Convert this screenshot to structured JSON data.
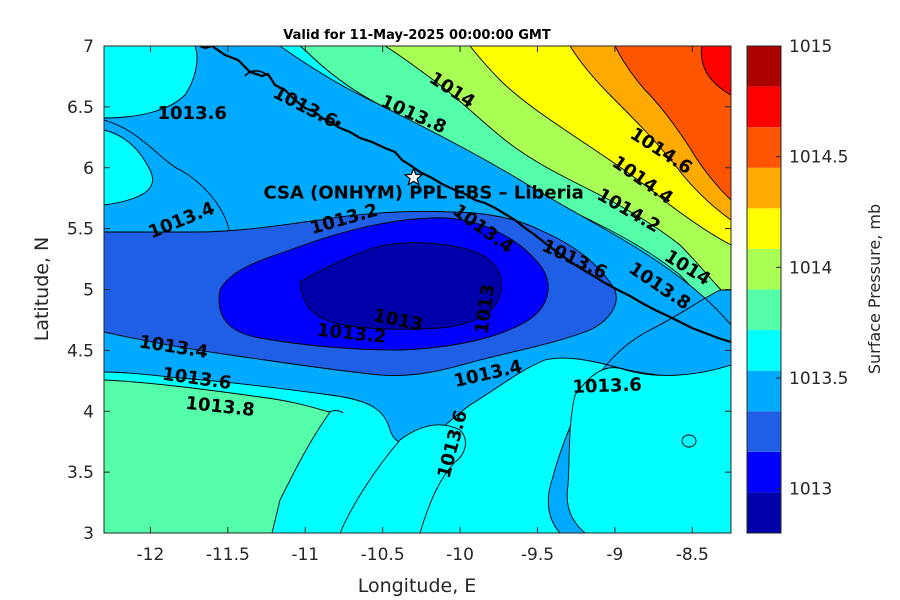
{
  "chart_data": {
    "type": "heatmap",
    "subtype": "filled-contour",
    "title": "Valid for 11-May-2025 00:00:00 GMT",
    "xlabel": "Longitude, E",
    "ylabel": "Latitude, N",
    "xlim": [
      -12.3,
      -8.25
    ],
    "ylim": [
      3,
      7
    ],
    "xticks": [
      -12,
      -11.5,
      -11,
      -10.5,
      -10,
      -9.5,
      -9,
      -8.5
    ],
    "yticks": [
      3,
      3.5,
      4,
      4.5,
      5,
      5.5,
      6,
      6.5,
      7
    ],
    "colorbar": {
      "label": "Surface Pressure, mb",
      "range": [
        1012.8,
        1015
      ],
      "ticks": [
        1013,
        1013.5,
        1014,
        1014.5,
        1015
      ],
      "colors": [
        "#0000aa",
        "#0000ff",
        "#1e5fe6",
        "#00aaff",
        "#00ffff",
        "#55ffaa",
        "#aaff55",
        "#ffff00",
        "#ffaa00",
        "#ff5500",
        "#ff0000",
        "#aa0000"
      ]
    },
    "contour_levels": [
      1012.8,
      1013,
      1013.2,
      1013.4,
      1013.6,
      1013.8,
      1014,
      1014.2,
      1014.4,
      1014.6,
      1014.8,
      1015
    ],
    "contour_labels": [
      {
        "text": "1013.6",
        "lon": -11.73,
        "lat": 6.45,
        "angle": 0
      },
      {
        "text": "1013.6",
        "lon": -11.0,
        "lat": 6.5,
        "angle": 27
      },
      {
        "text": "1014",
        "lon": -10.05,
        "lat": 6.64,
        "angle": 33
      },
      {
        "text": "1013.8",
        "lon": -10.3,
        "lat": 6.44,
        "angle": 24
      },
      {
        "text": "1014.6",
        "lon": -8.7,
        "lat": 6.14,
        "angle": 33
      },
      {
        "text": "1014.4",
        "lon": -8.82,
        "lat": 5.9,
        "angle": 35
      },
      {
        "text": "1014.2",
        "lon": -8.91,
        "lat": 5.65,
        "angle": 30
      },
      {
        "text": "1013.4",
        "lon": -11.8,
        "lat": 5.57,
        "angle": -22
      },
      {
        "text": "1013.2",
        "lon": -10.75,
        "lat": 5.58,
        "angle": -16
      },
      {
        "text": "1013.4",
        "lon": -9.85,
        "lat": 5.5,
        "angle": 36
      },
      {
        "text": "1013.6",
        "lon": -9.26,
        "lat": 5.25,
        "angle": 25
      },
      {
        "text": "1014",
        "lon": -8.53,
        "lat": 5.18,
        "angle": 32
      },
      {
        "text": "1013.8",
        "lon": -8.71,
        "lat": 5.03,
        "angle": 34
      },
      {
        "text": "1013",
        "lon": -10.4,
        "lat": 4.75,
        "angle": 12
      },
      {
        "text": "1013.2",
        "lon": -10.7,
        "lat": 4.64,
        "angle": 6
      },
      {
        "text": "1013",
        "lon": -9.84,
        "lat": 4.84,
        "angle": -82
      },
      {
        "text": "1013.4",
        "lon": -11.85,
        "lat": 4.53,
        "angle": 9
      },
      {
        "text": "1013.6",
        "lon": -11.7,
        "lat": 4.27,
        "angle": 8
      },
      {
        "text": "1013.8",
        "lon": -11.55,
        "lat": 4.04,
        "angle": 6
      },
      {
        "text": "1013.4",
        "lon": -9.82,
        "lat": 4.31,
        "angle": -13
      },
      {
        "text": "1013.6",
        "lon": -9.05,
        "lat": 4.21,
        "angle": -2
      },
      {
        "text": "1013.6",
        "lon": -10.05,
        "lat": 3.73,
        "angle": -75
      }
    ],
    "site": {
      "name": "CSA (ONHYM) PPL EBS  – Liberia",
      "lon": -10.3,
      "lat": 5.92,
      "marker": "star"
    }
  }
}
